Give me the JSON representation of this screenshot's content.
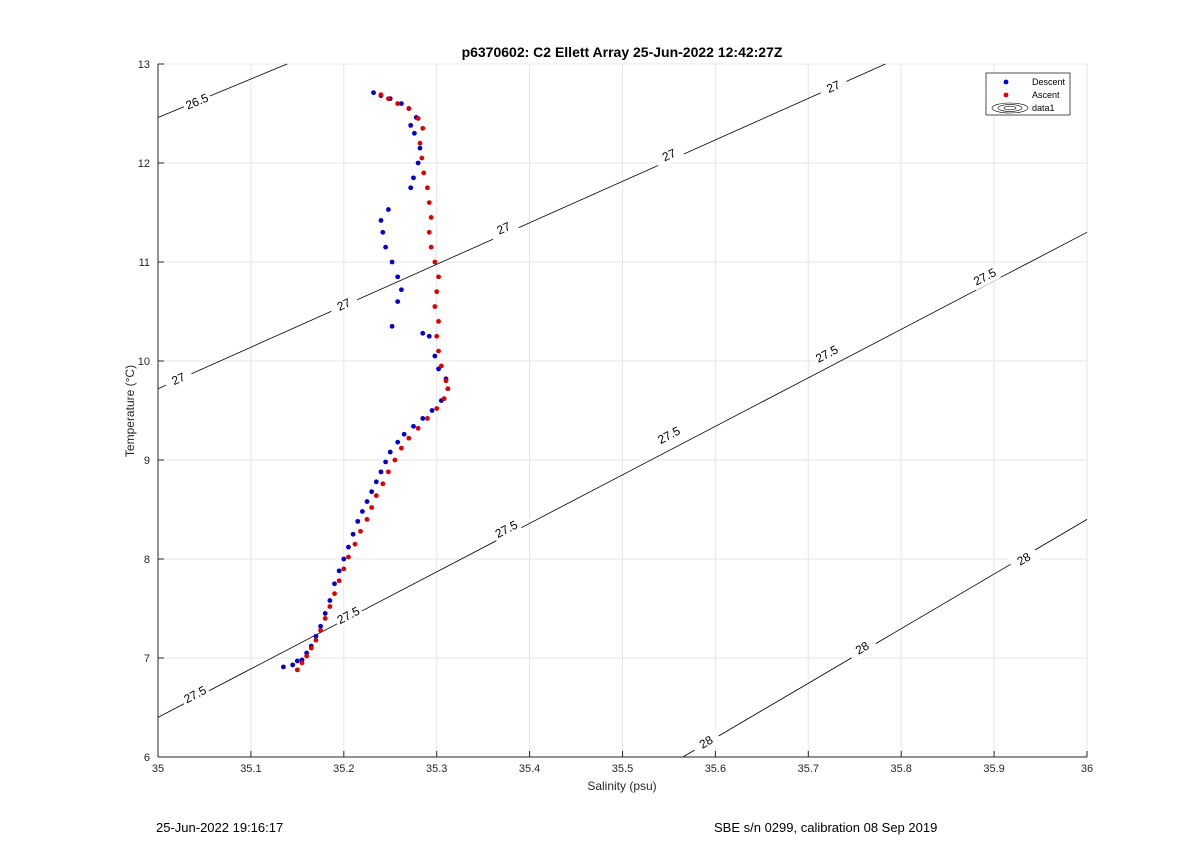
{
  "chart_data": {
    "type": "scatter",
    "title": "p6370602: C2 Ellett Array 25-Jun-2022 12:42:27Z",
    "xlabel": "Salinity (psu)",
    "ylabel": "Temperature (°C)",
    "xlim": [
      35,
      36
    ],
    "ylim": [
      6,
      13
    ],
    "x_ticks": [
      "35",
      "35.1",
      "35.2",
      "35.3",
      "35.4",
      "35.5",
      "35.6",
      "35.7",
      "35.8",
      "35.9",
      "36"
    ],
    "y_ticks": [
      "6",
      "7",
      "8",
      "9",
      "10",
      "11",
      "12",
      "13"
    ],
    "grid": true,
    "legend": {
      "position": "top-right",
      "entries": [
        "Descent",
        "Ascent",
        "data1"
      ]
    },
    "colors": {
      "descent": "#0000cc",
      "ascent": "#dd0000",
      "contour": "#000000",
      "grid": "#e6e6e6"
    },
    "series": [
      {
        "name": "Descent",
        "points": [
          [
            35.135,
            6.91
          ],
          [
            35.145,
            6.93
          ],
          [
            35.15,
            6.97
          ],
          [
            35.155,
            6.98
          ],
          [
            35.16,
            7.05
          ],
          [
            35.165,
            7.12
          ],
          [
            35.17,
            7.22
          ],
          [
            35.175,
            7.32
          ],
          [
            35.18,
            7.45
          ],
          [
            35.185,
            7.58
          ],
          [
            35.19,
            7.75
          ],
          [
            35.195,
            7.88
          ],
          [
            35.2,
            8.0
          ],
          [
            35.205,
            8.12
          ],
          [
            35.21,
            8.25
          ],
          [
            35.215,
            8.38
          ],
          [
            35.22,
            8.48
          ],
          [
            35.225,
            8.58
          ],
          [
            35.23,
            8.68
          ],
          [
            35.235,
            8.78
          ],
          [
            35.24,
            8.88
          ],
          [
            35.245,
            8.98
          ],
          [
            35.25,
            9.08
          ],
          [
            35.258,
            9.18
          ],
          [
            35.265,
            9.26
          ],
          [
            35.275,
            9.34
          ],
          [
            35.285,
            9.42
          ],
          [
            35.295,
            9.5
          ],
          [
            35.305,
            9.6
          ],
          [
            35.312,
            9.72
          ],
          [
            35.31,
            9.82
          ],
          [
            35.302,
            9.92
          ],
          [
            35.298,
            10.05
          ],
          [
            35.292,
            10.25
          ],
          [
            35.285,
            10.28
          ],
          [
            35.252,
            10.35
          ],
          [
            35.258,
            10.6
          ],
          [
            35.262,
            10.72
          ],
          [
            35.258,
            10.85
          ],
          [
            35.252,
            11.0
          ],
          [
            35.245,
            11.15
          ],
          [
            35.242,
            11.3
          ],
          [
            35.24,
            11.42
          ],
          [
            35.248,
            11.53
          ],
          [
            35.272,
            11.75
          ],
          [
            35.275,
            11.85
          ],
          [
            35.28,
            12.0
          ],
          [
            35.282,
            12.15
          ],
          [
            35.276,
            12.3
          ],
          [
            35.272,
            12.38
          ],
          [
            35.278,
            12.46
          ],
          [
            35.27,
            12.55
          ],
          [
            35.262,
            12.6
          ],
          [
            35.25,
            12.65
          ],
          [
            35.24,
            12.68
          ],
          [
            35.232,
            12.71
          ]
        ]
      },
      {
        "name": "Ascent",
        "points": [
          [
            35.15,
            6.88
          ],
          [
            35.155,
            6.95
          ],
          [
            35.16,
            7.02
          ],
          [
            35.165,
            7.1
          ],
          [
            35.17,
            7.18
          ],
          [
            35.175,
            7.28
          ],
          [
            35.18,
            7.4
          ],
          [
            35.185,
            7.52
          ],
          [
            35.19,
            7.65
          ],
          [
            35.195,
            7.78
          ],
          [
            35.2,
            7.9
          ],
          [
            35.205,
            8.02
          ],
          [
            35.212,
            8.15
          ],
          [
            35.218,
            8.28
          ],
          [
            35.225,
            8.4
          ],
          [
            35.23,
            8.52
          ],
          [
            35.235,
            8.64
          ],
          [
            35.242,
            8.76
          ],
          [
            35.248,
            8.88
          ],
          [
            35.255,
            9.0
          ],
          [
            35.262,
            9.12
          ],
          [
            35.27,
            9.22
          ],
          [
            35.28,
            9.32
          ],
          [
            35.29,
            9.42
          ],
          [
            35.3,
            9.52
          ],
          [
            35.308,
            9.62
          ],
          [
            35.312,
            9.72
          ],
          [
            35.31,
            9.8
          ],
          [
            35.305,
            9.95
          ],
          [
            35.302,
            10.1
          ],
          [
            35.3,
            10.25
          ],
          [
            35.302,
            10.4
          ],
          [
            35.298,
            10.55
          ],
          [
            35.3,
            10.7
          ],
          [
            35.302,
            10.85
          ],
          [
            35.298,
            11.0
          ],
          [
            35.294,
            11.15
          ],
          [
            35.292,
            11.3
          ],
          [
            35.294,
            11.45
          ],
          [
            35.292,
            11.6
          ],
          [
            35.29,
            11.75
          ],
          [
            35.286,
            11.9
          ],
          [
            35.284,
            12.05
          ],
          [
            35.282,
            12.2
          ],
          [
            35.285,
            12.35
          ],
          [
            35.28,
            12.45
          ],
          [
            35.27,
            12.55
          ],
          [
            35.258,
            12.6
          ],
          [
            35.248,
            12.65
          ],
          [
            35.24,
            12.69
          ]
        ]
      }
    ],
    "contours": [
      {
        "label": "26.5",
        "segment": [
          [
            35.0,
            12.46
          ],
          [
            35.139,
            13.0
          ]
        ],
        "label_positions": [
          [
            35.042,
            12.62
          ]
        ]
      },
      {
        "label": "27",
        "segment": [
          [
            35.0,
            9.72
          ],
          [
            35.783,
            13.0
          ]
        ],
        "label_positions": [
          [
            35.022,
            9.82
          ],
          [
            35.2,
            10.57
          ],
          [
            35.372,
            11.34
          ],
          [
            35.55,
            12.08
          ],
          [
            35.727,
            12.77
          ]
        ]
      },
      {
        "label": "27.5",
        "segment": [
          [
            35.0,
            6.4
          ],
          [
            36.0,
            11.3
          ]
        ],
        "label_positions": [
          [
            35.04,
            6.63
          ],
          [
            35.205,
            7.43
          ],
          [
            35.375,
            8.3
          ],
          [
            35.55,
            9.25
          ],
          [
            35.72,
            10.07
          ],
          [
            35.89,
            10.85
          ]
        ]
      },
      {
        "label": "28",
        "segment": [
          [
            35.565,
            6.0
          ],
          [
            36.0,
            8.4
          ]
        ],
        "label_positions": [
          [
            35.59,
            6.15
          ],
          [
            35.758,
            7.1
          ],
          [
            35.932,
            8.0
          ]
        ]
      }
    ]
  },
  "footer": {
    "left": "25-Jun-2022 19:16:17",
    "right": "SBE s/n 0299, calibration 08 Sep 2019"
  }
}
